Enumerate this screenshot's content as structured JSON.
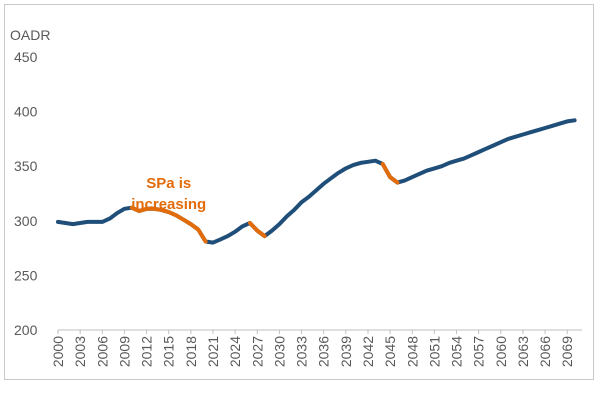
{
  "chart_data": {
    "type": "line",
    "title": "",
    "ylabel": "OADR",
    "xlabel": "",
    "ylim": [
      200,
      450
    ],
    "yticks": [
      200,
      250,
      300,
      350,
      400,
      450
    ],
    "xlim": [
      2000,
      2071
    ],
    "xticks": [
      2000,
      2003,
      2006,
      2009,
      2012,
      2015,
      2018,
      2021,
      2024,
      2027,
      2030,
      2033,
      2036,
      2039,
      2042,
      2045,
      2048,
      2051,
      2054,
      2057,
      2060,
      2063,
      2066,
      2069
    ],
    "grid": false,
    "colors": {
      "base": "#1f4e79",
      "highlight": "#e36c0a"
    },
    "annotation": {
      "line1": "SPa is",
      "line2": "increasing",
      "anchor_x": 2015,
      "anchor_y": 330
    },
    "series": [
      {
        "name": "OADR",
        "x": [
          2000,
          2001,
          2002,
          2003,
          2004,
          2005,
          2006,
          2007,
          2008,
          2009,
          2010,
          2011,
          2012,
          2013,
          2014,
          2015,
          2016,
          2017,
          2018,
          2019,
          2020,
          2021,
          2022,
          2023,
          2024,
          2025,
          2026,
          2027,
          2028,
          2029,
          2030,
          2031,
          2032,
          2033,
          2034,
          2035,
          2036,
          2037,
          2038,
          2039,
          2040,
          2041,
          2042,
          2043,
          2044,
          2045,
          2046,
          2047,
          2048,
          2049,
          2050,
          2051,
          2052,
          2053,
          2054,
          2055,
          2056,
          2057,
          2058,
          2059,
          2060,
          2061,
          2062,
          2063,
          2064,
          2065,
          2066,
          2067,
          2068,
          2069,
          2070
        ],
        "y": [
          299,
          298,
          297,
          298,
          299,
          299,
          299,
          302,
          307,
          311,
          312,
          309,
          311,
          311,
          310,
          308,
          305,
          301,
          297,
          292,
          281,
          280,
          283,
          286,
          290,
          295,
          298,
          291,
          286,
          291,
          297,
          304,
          310,
          317,
          322,
          328,
          334,
          339,
          344,
          348,
          351,
          353,
          354,
          355,
          352,
          340,
          335,
          337,
          340,
          343,
          346,
          348,
          350,
          353,
          355,
          357,
          360,
          363,
          366,
          369,
          372,
          375,
          377,
          379,
          381,
          383,
          385,
          387,
          389,
          391,
          392
        ],
        "highlight_ranges": [
          [
            2010,
            2020
          ],
          [
            2026,
            2028
          ],
          [
            2044,
            2046
          ]
        ]
      }
    ]
  }
}
